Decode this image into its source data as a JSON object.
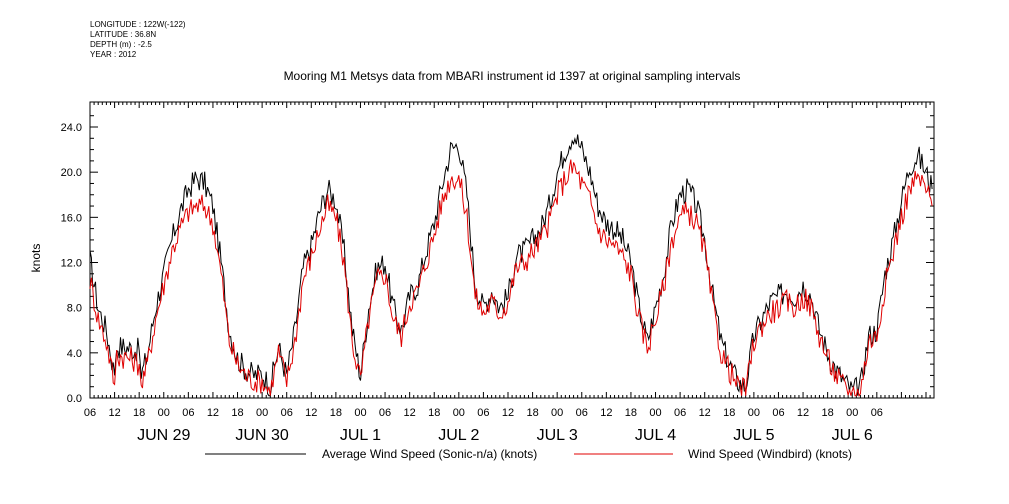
{
  "meta": {
    "longitude": "LONGITUDE : 122W(-122)",
    "latitude": "LATITUDE : 36.8N",
    "depth": "DEPTH (m) : -2.5",
    "year": "YEAR : 2012"
  },
  "chart_data": {
    "type": "line",
    "title": "Mooring M1 Metsys data from MBARI instrument id 1397 at original sampling intervals",
    "ylabel": "knots",
    "xlabel": "",
    "ylim": [
      0,
      25.2
    ],
    "yticks": [
      "0.0",
      "4.0",
      "8.0",
      "12.0",
      "16.0",
      "20.0",
      "24.0"
    ],
    "x_hour_ticks": [
      "06",
      "12",
      "18",
      "00",
      "06",
      "12",
      "18",
      "00",
      "06",
      "12",
      "18",
      "00",
      "06",
      "12",
      "18",
      "00",
      "06",
      "12",
      "18",
      "00",
      "06",
      "12",
      "18",
      "00",
      "06",
      "12",
      "18",
      "00",
      "06",
      "12",
      "18",
      "00",
      "06"
    ],
    "x_day_labels": [
      "JUN 29",
      "JUN 30",
      "JUL 1",
      "JUL 2",
      "JUL 3",
      "JUL 4",
      "JUL 5",
      "JUL 6"
    ],
    "x_units": "hours since 2012-06-28 06:00",
    "xlim": [
      0,
      204
    ],
    "grid": false,
    "legend_placement": "bottom",
    "series": [
      {
        "name": "Average Wind Speed (Sonic-n/a) (knots)",
        "color": "#000000",
        "points": [
          [
            0,
            12.2
          ],
          [
            2,
            8.0
          ],
          [
            4,
            6.0
          ],
          [
            6,
            2.0
          ],
          [
            6.5,
            4.6
          ],
          [
            10,
            4.4
          ],
          [
            12,
            4.2
          ],
          [
            12.5,
            2.0
          ],
          [
            14,
            3.8
          ],
          [
            16,
            8.0
          ],
          [
            18,
            11.0
          ],
          [
            20,
            14.0
          ],
          [
            22,
            16.5
          ],
          [
            24,
            18.5
          ],
          [
            26,
            19.5
          ],
          [
            28,
            19.0
          ],
          [
            30,
            17.0
          ],
          [
            32,
            12.0
          ],
          [
            34,
            6.0
          ],
          [
            36,
            3.5
          ],
          [
            38,
            2.5
          ],
          [
            40,
            2.0
          ],
          [
            42,
            2.2
          ],
          [
            44,
            1.0
          ],
          [
            46,
            4.5
          ],
          [
            48,
            2.0
          ],
          [
            50,
            6.0
          ],
          [
            52,
            11.5
          ],
          [
            54,
            13.5
          ],
          [
            56,
            16.5
          ],
          [
            58,
            18.5
          ],
          [
            60,
            17.5
          ],
          [
            62,
            13.0
          ],
          [
            64,
            6.0
          ],
          [
            66,
            2.0
          ],
          [
            68,
            8.0
          ],
          [
            70,
            11.5
          ],
          [
            72,
            12.0
          ],
          [
            74,
            8.0
          ],
          [
            76,
            6.0
          ],
          [
            78,
            9.0
          ],
          [
            80,
            10.0
          ],
          [
            82,
            13.0
          ],
          [
            84,
            15.5
          ],
          [
            86,
            19.0
          ],
          [
            88,
            22.0
          ],
          [
            90,
            22.5
          ],
          [
            92,
            18.0
          ],
          [
            94,
            10.0
          ],
          [
            96,
            8.0
          ],
          [
            98,
            9.5
          ],
          [
            100,
            8.0
          ],
          [
            102,
            9.0
          ],
          [
            104,
            12.5
          ],
          [
            106,
            13.0
          ],
          [
            108,
            14.0
          ],
          [
            110,
            15.0
          ],
          [
            112,
            17.0
          ],
          [
            114,
            20.0
          ],
          [
            116,
            22.0
          ],
          [
            118,
            23.5
          ],
          [
            120,
            22.0
          ],
          [
            122,
            20.0
          ],
          [
            124,
            17.0
          ],
          [
            126,
            15.5
          ],
          [
            128,
            15.0
          ],
          [
            130,
            14.0
          ],
          [
            132,
            12.0
          ],
          [
            134,
            8.0
          ],
          [
            136,
            5.0
          ],
          [
            138,
            8.0
          ],
          [
            140,
            11.0
          ],
          [
            142,
            15.5
          ],
          [
            144,
            18.0
          ],
          [
            146,
            18.5
          ],
          [
            148,
            17.0
          ],
          [
            150,
            14.0
          ],
          [
            152,
            9.0
          ],
          [
            154,
            5.0
          ],
          [
            156,
            3.0
          ],
          [
            158,
            1.5
          ],
          [
            160,
            1.0
          ],
          [
            162,
            5.5
          ],
          [
            164,
            7.0
          ],
          [
            166,
            8.5
          ],
          [
            168,
            9.0
          ],
          [
            170,
            9.5
          ],
          [
            172,
            9.0
          ],
          [
            174,
            10.0
          ],
          [
            176,
            9.0
          ],
          [
            178,
            6.0
          ],
          [
            180,
            4.0
          ],
          [
            182,
            2.5
          ],
          [
            184,
            1.5
          ],
          [
            186,
            0.6
          ],
          [
            188,
            1.0
          ],
          [
            190,
            5.5
          ],
          [
            192,
            6.0
          ],
          [
            194,
            11.0
          ],
          [
            196,
            14.0
          ],
          [
            198,
            17.5
          ],
          [
            200,
            20.5
          ],
          [
            202,
            21.5
          ],
          [
            204,
            20.0
          ],
          [
            205.5,
            18.5
          ]
        ]
      },
      {
        "name": "Wind Speed (Windbird) (knots)",
        "color": "#e00000",
        "points": [
          [
            0,
            10.5
          ],
          [
            2,
            7.0
          ],
          [
            4,
            5.0
          ],
          [
            6,
            1.2
          ],
          [
            6.5,
            3.8
          ],
          [
            10,
            3.5
          ],
          [
            12,
            3.0
          ],
          [
            12.5,
            1.2
          ],
          [
            14,
            3.0
          ],
          [
            16,
            7.0
          ],
          [
            18,
            10.0
          ],
          [
            20,
            13.0
          ],
          [
            22,
            15.0
          ],
          [
            24,
            16.5
          ],
          [
            26,
            17.0
          ],
          [
            28,
            17.0
          ],
          [
            30,
            15.5
          ],
          [
            32,
            11.0
          ],
          [
            34,
            5.0
          ],
          [
            36,
            3.0
          ],
          [
            38,
            2.0
          ],
          [
            40,
            1.5
          ],
          [
            42,
            1.5
          ],
          [
            44,
            0.5
          ],
          [
            46,
            4.0
          ],
          [
            48,
            1.5
          ],
          [
            50,
            5.0
          ],
          [
            52,
            10.5
          ],
          [
            54,
            12.5
          ],
          [
            56,
            15.0
          ],
          [
            58,
            17.0
          ],
          [
            60,
            16.0
          ],
          [
            62,
            12.0
          ],
          [
            64,
            5.0
          ],
          [
            66,
            1.5
          ],
          [
            68,
            7.0
          ],
          [
            70,
            10.5
          ],
          [
            72,
            11.0
          ],
          [
            74,
            7.0
          ],
          [
            76,
            5.5
          ],
          [
            78,
            8.5
          ],
          [
            80,
            9.5
          ],
          [
            82,
            12.0
          ],
          [
            84,
            14.5
          ],
          [
            86,
            17.5
          ],
          [
            88,
            19.5
          ],
          [
            90,
            19.5
          ],
          [
            92,
            16.0
          ],
          [
            94,
            9.0
          ],
          [
            96,
            7.5
          ],
          [
            98,
            8.5
          ],
          [
            100,
            7.5
          ],
          [
            102,
            8.5
          ],
          [
            104,
            11.5
          ],
          [
            106,
            12.0
          ],
          [
            108,
            13.0
          ],
          [
            110,
            14.0
          ],
          [
            112,
            15.5
          ],
          [
            114,
            18.0
          ],
          [
            116,
            19.5
          ],
          [
            118,
            20.5
          ],
          [
            120,
            19.0
          ],
          [
            122,
            17.5
          ],
          [
            124,
            15.0
          ],
          [
            126,
            14.0
          ],
          [
            128,
            13.5
          ],
          [
            130,
            12.5
          ],
          [
            132,
            11.0
          ],
          [
            134,
            7.0
          ],
          [
            136,
            4.5
          ],
          [
            138,
            7.0
          ],
          [
            140,
            10.0
          ],
          [
            142,
            14.0
          ],
          [
            144,
            16.0
          ],
          [
            146,
            16.5
          ],
          [
            148,
            15.5
          ],
          [
            150,
            13.0
          ],
          [
            152,
            8.0
          ],
          [
            154,
            4.0
          ],
          [
            156,
            2.5
          ],
          [
            158,
            1.0
          ],
          [
            160,
            0.6
          ],
          [
            162,
            5.0
          ],
          [
            164,
            6.5
          ],
          [
            166,
            7.5
          ],
          [
            168,
            8.0
          ],
          [
            170,
            8.5
          ],
          [
            172,
            8.0
          ],
          [
            174,
            9.0
          ],
          [
            176,
            8.0
          ],
          [
            178,
            5.5
          ],
          [
            180,
            3.5
          ],
          [
            182,
            2.0
          ],
          [
            184,
            1.0
          ],
          [
            186,
            0.4
          ],
          [
            188,
            0.6
          ],
          [
            190,
            5.0
          ],
          [
            192,
            5.5
          ],
          [
            194,
            10.0
          ],
          [
            196,
            13.0
          ],
          [
            198,
            16.0
          ],
          [
            200,
            18.5
          ],
          [
            202,
            19.5
          ],
          [
            204,
            18.5
          ],
          [
            205.5,
            17.0
          ]
        ]
      }
    ]
  }
}
